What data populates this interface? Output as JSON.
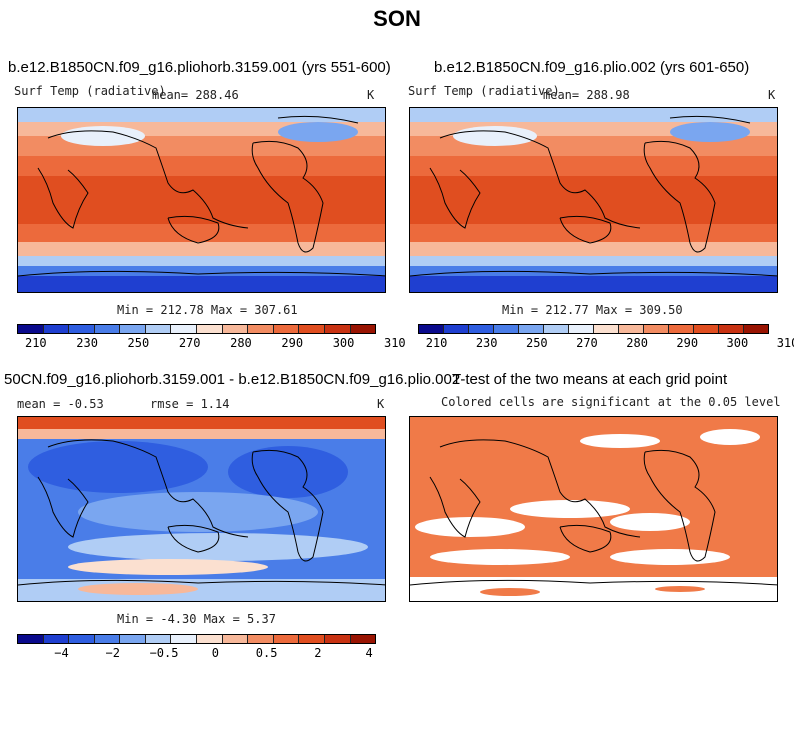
{
  "figure": {
    "title": "SON"
  },
  "panels": [
    {
      "title": "b.e12.B1850CN.f09_g16.pliohorb.3159.001 (yrs 551-600)",
      "variable": "Surf Temp (radiative)",
      "mean_text": "mean= 288.46",
      "units": "K",
      "minmax_text": "Min = 212.78 Max = 307.61",
      "palette": "temp"
    },
    {
      "title": "b.e12.B1850CN.f09_g16.plio.002 (yrs 601-650)",
      "variable": "Surf Temp (radiative)",
      "mean_text": "mean= 288.98",
      "units": "K",
      "minmax_text": "Min = 212.77 Max = 309.50",
      "palette": "temp"
    },
    {
      "title": "50CN.f09_g16.pliohorb.3159.001 - b.e12.B1850CN.f09_g16.plio.002",
      "mean_text": "mean =   -0.53",
      "rmse_text": "rmse =    1.14",
      "units": "K",
      "minmax_text": "Min =  -4.30 Max =   5.37",
      "palette": "diff"
    },
    {
      "title": "T-test of the two means at each grid point",
      "subtitle": "Colored cells are significant at the 0.05 level",
      "palette": "ttest"
    }
  ],
  "colorbars": {
    "temp": {
      "colors": [
        "#0a0a8c",
        "#1f3fd0",
        "#2f5ee0",
        "#4a7de8",
        "#7aa6f0",
        "#b0cdf5",
        "#e8f0fb",
        "#fbe0d0",
        "#f7b89a",
        "#f28c62",
        "#ec6a3c",
        "#e04e20",
        "#c83212",
        "#991402"
      ],
      "ticks": [
        "210",
        "230",
        "250",
        "270",
        "280",
        "290",
        "300",
        "310"
      ]
    },
    "diff": {
      "colors": [
        "#0a0a8c",
        "#1f3fd0",
        "#2f5ee0",
        "#4a7de8",
        "#7aa6f0",
        "#b0cdf5",
        "#e8f0fb",
        "#fbe0d0",
        "#f7b89a",
        "#f28c62",
        "#ec6a3c",
        "#e04e20",
        "#c83212",
        "#991402"
      ],
      "ticks": [
        "−4",
        "−2",
        "−0.5",
        "0",
        "0.5",
        "2",
        "4"
      ]
    }
  },
  "map_colors": {
    "temp_bands": [
      "#1f3fd0",
      "#4a7de8",
      "#7aa6f0",
      "#b0cdf5",
      "#f7b89a",
      "#f28c62",
      "#ec6a3c",
      "#e04e20",
      "#d43a14"
    ],
    "diff_main": "#4a7de8",
    "diff_light": "#b0cdf5",
    "diff_dark": "#2f5ee0",
    "diff_warm": "#fbe0d0",
    "diff_hot": "#e04e20",
    "ttest": "#f07a48"
  }
}
